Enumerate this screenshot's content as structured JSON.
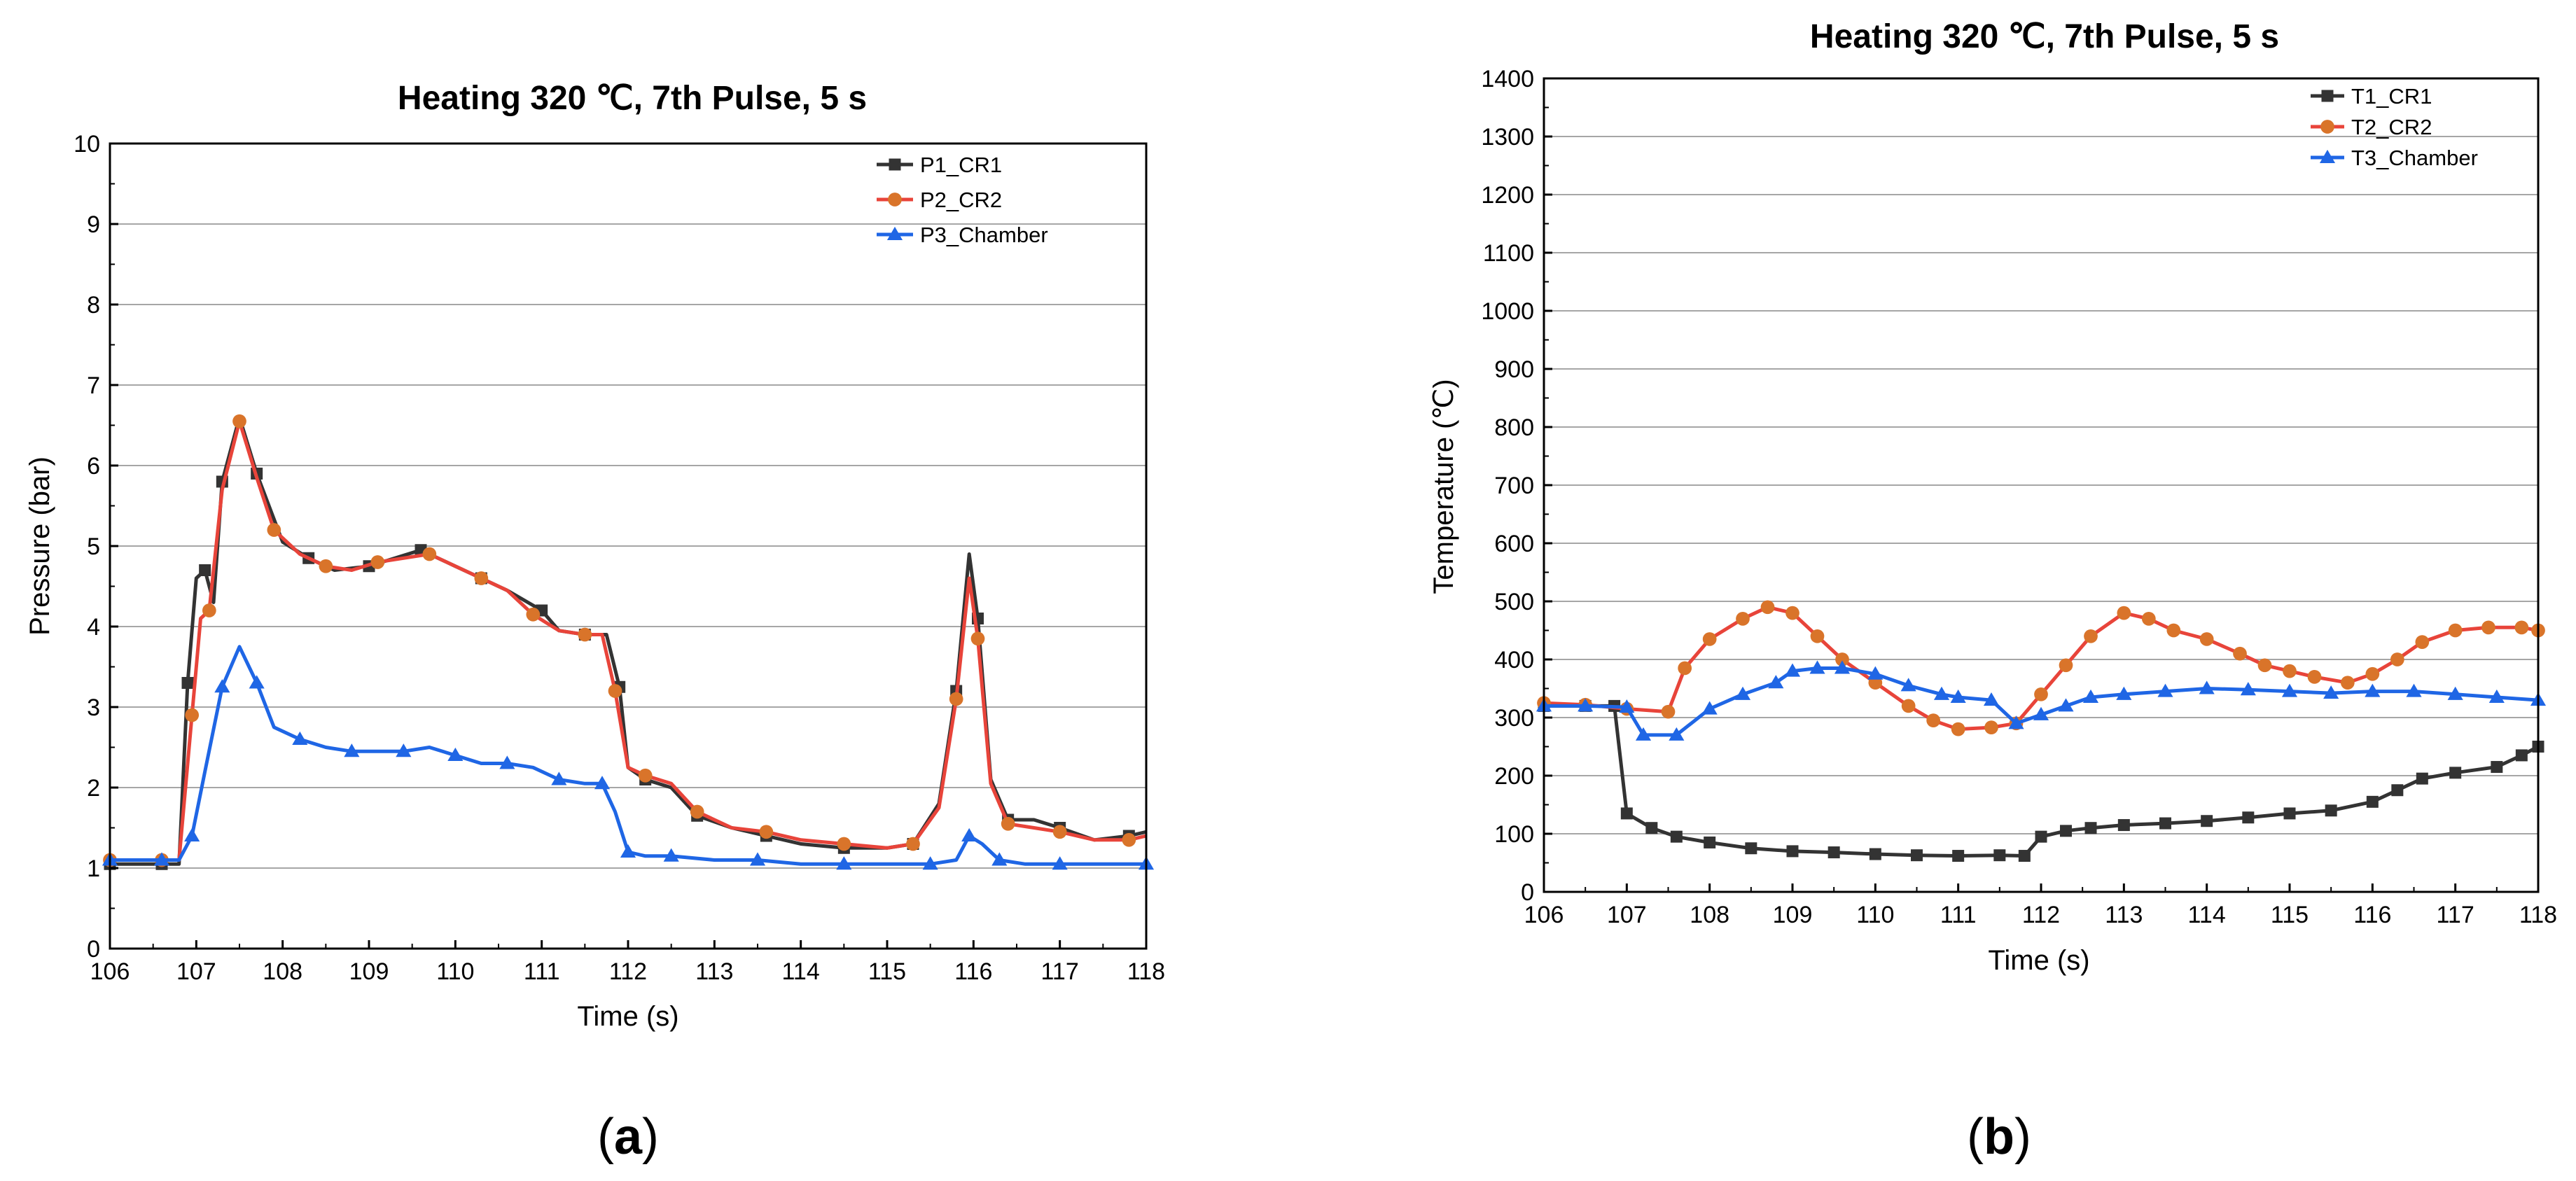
{
  "figure": {
    "panels": [
      {
        "caption_open": "(",
        "caption_letter": "a",
        "caption_close": ")"
      },
      {
        "caption_open": "(",
        "caption_letter": "b",
        "caption_close": ")"
      }
    ]
  },
  "colors": {
    "series1": "#333333",
    "series2": "#e8443a",
    "series3": "#1f66e5",
    "marker2": "#d9742a",
    "grid": "#a6a6a6",
    "axis": "#000000"
  },
  "chart_data": [
    {
      "type": "line",
      "title": "Heating 320 ℃, 7th Pulse, 5 s",
      "xlabel": "Time (s)",
      "ylabel": "Pressure (bar)",
      "xlim": [
        106,
        118
      ],
      "ylim": [
        0,
        10
      ],
      "xticks": [
        106,
        107,
        108,
        109,
        110,
        111,
        112,
        113,
        114,
        115,
        116,
        117,
        118
      ],
      "yticks": [
        0,
        1,
        2,
        3,
        4,
        5,
        6,
        7,
        8,
        9,
        10
      ],
      "grid": "horizontal",
      "legend_position": "top-right",
      "series": [
        {
          "name": "P1_CR1",
          "color": "series1",
          "marker": "square",
          "x": [
            106,
            106.3,
            106.6,
            106.8,
            106.9,
            107,
            107.1,
            107.2,
            107.3,
            107.5,
            107.7,
            108,
            108.3,
            108.6,
            109,
            109.3,
            109.6,
            110,
            110.3,
            110.6,
            111,
            111.2,
            111.5,
            111.75,
            111.9,
            112,
            112.2,
            112.5,
            112.8,
            113.2,
            113.6,
            114,
            114.5,
            115,
            115.3,
            115.6,
            115.8,
            115.95,
            116.05,
            116.2,
            116.4,
            116.7,
            117,
            117.4,
            117.8,
            118
          ],
          "y": [
            1.05,
            1.05,
            1.05,
            1.05,
            3.3,
            4.6,
            4.7,
            4.3,
            5.8,
            6.6,
            5.9,
            5.05,
            4.85,
            4.7,
            4.75,
            4.85,
            4.95,
            4.75,
            4.6,
            4.45,
            4.2,
            3.95,
            3.9,
            3.9,
            3.25,
            2.25,
            2.1,
            2.0,
            1.65,
            1.5,
            1.4,
            1.3,
            1.25,
            1.25,
            1.3,
            1.8,
            3.2,
            4.9,
            4.1,
            2.1,
            1.6,
            1.6,
            1.5,
            1.35,
            1.4,
            1.45
          ]
        },
        {
          "name": "P2_CR2",
          "color": "series2",
          "marker": "circle",
          "x": [
            106,
            106.3,
            106.6,
            106.8,
            106.95,
            107.05,
            107.15,
            107.3,
            107.5,
            107.7,
            107.9,
            108.2,
            108.5,
            108.8,
            109.1,
            109.4,
            109.7,
            110,
            110.3,
            110.6,
            110.9,
            111.2,
            111.5,
            111.7,
            111.85,
            112,
            112.2,
            112.5,
            112.8,
            113.2,
            113.6,
            114,
            114.5,
            115,
            115.3,
            115.6,
            115.8,
            115.95,
            116.05,
            116.2,
            116.4,
            116.7,
            117,
            117.4,
            117.8,
            118
          ],
          "y": [
            1.1,
            1.1,
            1.1,
            1.1,
            2.9,
            4.1,
            4.2,
            5.7,
            6.55,
            5.85,
            5.2,
            4.9,
            4.75,
            4.7,
            4.8,
            4.85,
            4.9,
            4.75,
            4.6,
            4.45,
            4.15,
            3.95,
            3.9,
            3.9,
            3.2,
            2.25,
            2.15,
            2.05,
            1.7,
            1.5,
            1.45,
            1.35,
            1.3,
            1.25,
            1.3,
            1.75,
            3.1,
            4.6,
            3.85,
            2.05,
            1.55,
            1.5,
            1.45,
            1.35,
            1.35,
            1.4
          ]
        },
        {
          "name": "P3_Chamber",
          "color": "series3",
          "marker": "triangle",
          "x": [
            106,
            106.3,
            106.6,
            106.8,
            106.95,
            107.1,
            107.3,
            107.5,
            107.7,
            107.9,
            108.2,
            108.5,
            108.8,
            109.1,
            109.4,
            109.7,
            110,
            110.3,
            110.6,
            110.9,
            111.2,
            111.5,
            111.7,
            111.85,
            112,
            112.2,
            112.5,
            113,
            113.5,
            114,
            114.5,
            115,
            115.5,
            115.8,
            115.95,
            116.1,
            116.3,
            116.6,
            117,
            117.5,
            118
          ],
          "y": [
            1.1,
            1.1,
            1.1,
            1.1,
            1.4,
            2.2,
            3.25,
            3.75,
            3.3,
            2.75,
            2.6,
            2.5,
            2.45,
            2.45,
            2.45,
            2.5,
            2.4,
            2.3,
            2.3,
            2.25,
            2.1,
            2.05,
            2.05,
            1.7,
            1.2,
            1.15,
            1.15,
            1.1,
            1.1,
            1.05,
            1.05,
            1.05,
            1.05,
            1.1,
            1.4,
            1.3,
            1.1,
            1.05,
            1.05,
            1.05,
            1.05
          ]
        }
      ]
    },
    {
      "type": "line",
      "title": "Heating 320 ℃, 7th Pulse, 5 s",
      "xlabel": "Time (s)",
      "ylabel": "Temperature (℃)",
      "xlim": [
        106,
        118
      ],
      "ylim": [
        0,
        1400
      ],
      "xticks": [
        106,
        107,
        108,
        109,
        110,
        111,
        112,
        113,
        114,
        115,
        116,
        117,
        118
      ],
      "yticks": [
        0,
        100,
        200,
        300,
        400,
        500,
        600,
        700,
        800,
        900,
        1000,
        1100,
        1200,
        1300,
        1400
      ],
      "grid": "horizontal",
      "legend_position": "top-right",
      "series": [
        {
          "name": "T1_CR1",
          "color": "series1",
          "marker": "square",
          "x": [
            106,
            106.5,
            106.85,
            107,
            107.3,
            107.6,
            108,
            108.5,
            109,
            109.5,
            110,
            110.5,
            111,
            111.5,
            111.8,
            112,
            112.3,
            112.6,
            113,
            113.5,
            114,
            114.5,
            115,
            115.5,
            116,
            116.3,
            116.6,
            117,
            117.5,
            117.8,
            118
          ],
          "y": [
            320,
            320,
            320,
            135,
            110,
            95,
            85,
            75,
            70,
            68,
            65,
            63,
            62,
            63,
            62,
            95,
            105,
            110,
            115,
            118,
            122,
            128,
            135,
            140,
            155,
            175,
            195,
            205,
            215,
            235,
            250
          ]
        },
        {
          "name": "T2_CR2",
          "color": "series2",
          "marker": "circle",
          "x": [
            106,
            106.5,
            107,
            107.5,
            107.7,
            108,
            108.4,
            108.7,
            109,
            109.3,
            109.6,
            110,
            110.4,
            110.7,
            111,
            111.4,
            111.7,
            112,
            112.3,
            112.6,
            113,
            113.3,
            113.6,
            114,
            114.4,
            114.7,
            115,
            115.3,
            115.7,
            116,
            116.3,
            116.6,
            117,
            117.4,
            117.8,
            118
          ],
          "y": [
            325,
            322,
            315,
            310,
            385,
            435,
            470,
            490,
            480,
            440,
            400,
            360,
            320,
            295,
            280,
            283,
            290,
            340,
            390,
            440,
            480,
            470,
            450,
            435,
            410,
            390,
            380,
            370,
            360,
            375,
            400,
            430,
            450,
            455,
            455,
            450
          ]
        },
        {
          "name": "T3_Chamber",
          "color": "series3",
          "marker": "triangle",
          "x": [
            106,
            106.5,
            107,
            107.2,
            107.6,
            108,
            108.4,
            108.8,
            109,
            109.3,
            109.6,
            110,
            110.4,
            110.8,
            111,
            111.4,
            111.7,
            112,
            112.3,
            112.6,
            113,
            113.5,
            114,
            114.5,
            115,
            115.5,
            116,
            116.5,
            117,
            117.5,
            118
          ],
          "y": [
            320,
            320,
            318,
            270,
            270,
            315,
            340,
            360,
            380,
            385,
            385,
            375,
            355,
            340,
            335,
            330,
            290,
            305,
            320,
            335,
            340,
            345,
            350,
            348,
            345,
            342,
            345,
            345,
            340,
            335,
            330
          ]
        }
      ]
    }
  ]
}
